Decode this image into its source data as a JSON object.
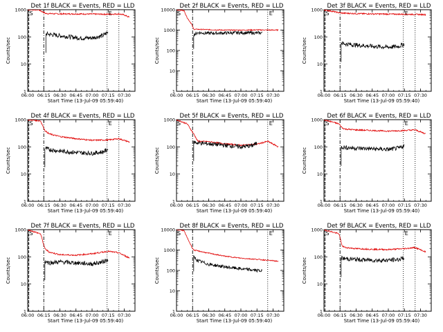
{
  "figure": {
    "colors": {
      "events": "#000000",
      "lld": "#e00000",
      "axes": "#000000",
      "background": "#ffffff"
    },
    "markers": {
      "start": "S",
      "end": "E"
    }
  },
  "chart_data": [
    {
      "type": "line",
      "title": "Det 1f BLACK = Events, RED = LLD",
      "xlabel": "Start Time (13-Jul-09 05:59:40)",
      "ylabel": "Counts/sec",
      "yscale": "log",
      "ylim": [
        1,
        1000
      ],
      "xlim": [
        "06:00",
        "07:40"
      ],
      "xticks": [
        "06:00",
        "06:15",
        "06:30",
        "06:45",
        "07:00",
        "07:15",
        "07:30"
      ],
      "yticks": [
        "1",
        "10",
        "100",
        "1000"
      ],
      "grid": false,
      "vlines": [
        "06:01",
        "06:15",
        "07:14",
        "07:25"
      ],
      "series": [
        {
          "color": "#000000",
          "x": [
            "06:17",
            "06:20",
            "06:30",
            "06:40",
            "06:50",
            "07:00",
            "07:10",
            "07:15"
          ],
          "y": [
            130,
            125,
            110,
            100,
            90,
            92,
            110,
            150
          ]
        },
        {
          "color": "#e00000",
          "x": [
            "06:00",
            "06:10",
            "06:17",
            "06:20",
            "06:30",
            "06:45",
            "07:00",
            "07:15",
            "07:25",
            "07:30",
            "07:35"
          ],
          "y": [
            1000,
            1000,
            720,
            720,
            700,
            700,
            690,
            680,
            700,
            640,
            520
          ]
        }
      ]
    },
    {
      "type": "line",
      "title": "Det 2f BLACK = Events, RED = LLD",
      "xlabel": "Start Time (13-Jul-09 05:59:40)",
      "ylabel": "Counts/sec",
      "yscale": "log",
      "ylim": [
        1,
        10000
      ],
      "xlim": [
        "06:00",
        "07:40"
      ],
      "xticks": [
        "06:00",
        "06:15",
        "06:30",
        "06:45",
        "07:00",
        "07:15",
        "07:30"
      ],
      "yticks": [
        "1",
        "10",
        "100",
        "1000",
        "10000"
      ],
      "grid": false,
      "vlines": [
        "06:15",
        "07:25"
      ],
      "series": [
        {
          "color": "#000000",
          "x": [
            "06:16",
            "06:20",
            "06:30",
            "06:45",
            "07:00",
            "07:15",
            "07:20"
          ],
          "y": [
            600,
            750,
            700,
            720,
            740,
            720,
            730
          ]
        },
        {
          "color": "#e00000",
          "x": [
            "06:00",
            "06:07",
            "06:10",
            "06:14",
            "06:16",
            "06:30",
            "06:45",
            "07:00",
            "07:15",
            "07:35"
          ],
          "y": [
            10000,
            9000,
            4000,
            2000,
            1100,
            1050,
            1000,
            1000,
            1020,
            1000
          ]
        }
      ]
    },
    {
      "type": "line",
      "title": "Det 3f BLACK = Events, RED = LLD",
      "xlabel": "Start Time (13-Jul-09 05:59:40)",
      "ylabel": "Counts/sec",
      "yscale": "log",
      "ylim": [
        1,
        1000
      ],
      "xlim": [
        "06:00",
        "07:40"
      ],
      "xticks": [
        "06:00",
        "06:15",
        "06:30",
        "06:45",
        "07:00",
        "07:15",
        "07:30"
      ],
      "yticks": [
        "1",
        "10",
        "100",
        "1000"
      ],
      "grid": false,
      "vlines": [
        "06:01",
        "06:15",
        "07:14",
        "07:25"
      ],
      "series": [
        {
          "color": "#000000",
          "x": [
            "06:16",
            "06:20",
            "06:30",
            "06:45",
            "07:00",
            "07:10",
            "07:15"
          ],
          "y": [
            60,
            55,
            50,
            45,
            42,
            45,
            55
          ]
        },
        {
          "color": "#e00000",
          "x": [
            "06:00",
            "06:16",
            "06:30",
            "06:45",
            "07:00",
            "07:15",
            "07:35"
          ],
          "y": [
            1000,
            750,
            720,
            700,
            690,
            680,
            660
          ]
        }
      ]
    },
    {
      "type": "line",
      "title": "Det 4f BLACK = Events, RED = LLD",
      "xlabel": "Start Time (13-Jul-09 05:59:40)",
      "ylabel": "Counts/sec",
      "yscale": "log",
      "ylim": [
        1,
        1000
      ],
      "xlim": [
        "06:00",
        "07:40"
      ],
      "xticks": [
        "06:00",
        "06:15",
        "06:30",
        "06:45",
        "07:00",
        "07:15",
        "07:30"
      ],
      "yticks": [
        "1",
        "10",
        "100",
        "1000"
      ],
      "grid": false,
      "vlines": [
        "06:01",
        "06:15",
        "07:14",
        "07:25"
      ],
      "series": [
        {
          "color": "#000000",
          "x": [
            "06:16",
            "06:20",
            "06:30",
            "06:45",
            "07:00",
            "07:10",
            "07:15"
          ],
          "y": [
            90,
            80,
            70,
            62,
            58,
            65,
            80
          ]
        },
        {
          "color": "#e00000",
          "x": [
            "06:00",
            "06:12",
            "06:16",
            "06:20",
            "06:30",
            "06:45",
            "07:00",
            "07:15",
            "07:25",
            "07:35"
          ],
          "y": [
            1000,
            900,
            400,
            300,
            240,
            200,
            175,
            180,
            200,
            150
          ]
        }
      ]
    },
    {
      "type": "line",
      "title": "Det 5f BLACK = Events, RED = LLD",
      "xlabel": "Start Time (13-Jul-09 05:59:40)",
      "ylabel": "Counts/sec",
      "yscale": "log",
      "ylim": [
        1,
        1000
      ],
      "xlim": [
        "06:00",
        "07:40"
      ],
      "xticks": [
        "06:00",
        "06:15",
        "06:30",
        "06:45",
        "07:00",
        "07:15",
        "07:30"
      ],
      "yticks": [
        "1",
        "10",
        "100",
        "1000"
      ],
      "grid": false,
      "vlines": [
        "06:15",
        "07:25"
      ],
      "series": [
        {
          "color": "#000000",
          "x": [
            "06:16",
            "06:20",
            "06:30",
            "06:45",
            "07:00",
            "07:10",
            "07:15"
          ],
          "y": [
            150,
            140,
            130,
            115,
            100,
            110,
            135
          ]
        },
        {
          "color": "#e00000",
          "x": [
            "06:00",
            "06:10",
            "06:16",
            "06:20",
            "06:30",
            "06:45",
            "07:00",
            "07:15",
            "07:25",
            "07:35"
          ],
          "y": [
            1000,
            700,
            300,
            160,
            155,
            130,
            115,
            125,
            160,
            100
          ]
        }
      ]
    },
    {
      "type": "line",
      "title": "Det 6f BLACK = Events, RED = LLD",
      "xlabel": "Start Time (13-Jul-09 05:59:40)",
      "ylabel": "Counts/sec",
      "yscale": "log",
      "ylim": [
        1,
        1000
      ],
      "xlim": [
        "06:00",
        "07:40"
      ],
      "xticks": [
        "06:00",
        "06:15",
        "06:30",
        "06:45",
        "07:00",
        "07:15",
        "07:30"
      ],
      "yticks": [
        "1",
        "10",
        "100",
        "1000"
      ],
      "grid": false,
      "vlines": [
        "06:01",
        "06:15",
        "07:14",
        "07:25"
      ],
      "series": [
        {
          "color": "#000000",
          "x": [
            "06:16",
            "06:20",
            "06:30",
            "06:45",
            "07:00",
            "07:10",
            "07:15"
          ],
          "y": [
            100,
            95,
            90,
            85,
            80,
            90,
            110
          ]
        },
        {
          "color": "#e00000",
          "x": [
            "06:00",
            "06:14",
            "06:17",
            "06:20",
            "06:30",
            "06:45",
            "07:00",
            "07:15",
            "07:25",
            "07:35"
          ],
          "y": [
            1000,
            700,
            500,
            450,
            420,
            400,
            380,
            400,
            420,
            300
          ]
        }
      ]
    },
    {
      "type": "line",
      "title": "Det 7f BLACK = Events, RED = LLD",
      "xlabel": "Start Time (13-Jul-09 05:59:40)",
      "ylabel": "Counts/sec",
      "yscale": "log",
      "ylim": [
        1,
        1000
      ],
      "xlim": [
        "06:00",
        "07:40"
      ],
      "xticks": [
        "06:00",
        "06:15",
        "06:30",
        "06:45",
        "07:00",
        "07:15",
        "07:30"
      ],
      "yticks": [
        "1",
        "10",
        "100",
        "1000"
      ],
      "grid": false,
      "vlines": [
        "06:01",
        "06:15",
        "07:14",
        "07:25"
      ],
      "series": [
        {
          "color": "#000000",
          "x": [
            "06:16",
            "06:20",
            "06:30",
            "06:45",
            "07:00",
            "07:10",
            "07:15"
          ],
          "y": [
            70,
            60,
            65,
            60,
            55,
            65,
            80
          ]
        },
        {
          "color": "#e00000",
          "x": [
            "06:00",
            "06:12",
            "06:16",
            "06:20",
            "06:30",
            "06:45",
            "07:00",
            "07:15",
            "07:25",
            "07:35"
          ],
          "y": [
            1000,
            700,
            200,
            150,
            120,
            115,
            130,
            160,
            140,
            90
          ]
        }
      ]
    },
    {
      "type": "line",
      "title": "Det 8f BLACK = Events, RED = LLD",
      "xlabel": "Start Time (13-Jul-09 05:59:40)",
      "ylabel": "Counts/sec",
      "yscale": "log",
      "ylim": [
        1,
        10000
      ],
      "xlim": [
        "06:00",
        "07:40"
      ],
      "xticks": [
        "06:00",
        "06:15",
        "06:30",
        "06:45",
        "07:00",
        "07:15",
        "07:30"
      ],
      "yticks": [
        "1",
        "10",
        "100",
        "1000",
        "10000"
      ],
      "grid": false,
      "vlines": [
        "06:15",
        "07:25"
      ],
      "series": [
        {
          "color": "#000000",
          "x": [
            "06:16",
            "06:20",
            "06:30",
            "06:45",
            "07:00",
            "07:15",
            "07:20"
          ],
          "y": [
            450,
            300,
            200,
            150,
            120,
            100,
            95
          ]
        },
        {
          "color": "#e00000",
          "x": [
            "06:00",
            "06:07",
            "06:10",
            "06:14",
            "06:16",
            "06:30",
            "06:45",
            "07:00",
            "07:15",
            "07:30",
            "07:35"
          ],
          "y": [
            10000,
            9000,
            4000,
            1500,
            1000,
            700,
            500,
            400,
            350,
            300,
            280
          ]
        }
      ]
    },
    {
      "type": "line",
      "title": "Det 9f BLACK = Events, RED = LLD",
      "xlabel": "Start Time (13-Jul-09 05:59:40)",
      "ylabel": "Counts/sec",
      "yscale": "log",
      "ylim": [
        1,
        1000
      ],
      "xlim": [
        "06:00",
        "07:40"
      ],
      "xticks": [
        "06:00",
        "06:15",
        "06:30",
        "06:45",
        "07:00",
        "07:15",
        "07:30"
      ],
      "yticks": [
        "1",
        "10",
        "100",
        "1000"
      ],
      "grid": false,
      "vlines": [
        "06:01",
        "06:15",
        "07:14",
        "07:25"
      ],
      "series": [
        {
          "color": "#000000",
          "x": [
            "06:16",
            "06:20",
            "06:30",
            "06:45",
            "07:00",
            "07:10",
            "07:15"
          ],
          "y": [
            90,
            85,
            80,
            75,
            75,
            80,
            95
          ]
        },
        {
          "color": "#e00000",
          "x": [
            "06:00",
            "06:14",
            "06:17",
            "06:20",
            "06:30",
            "06:45",
            "07:00",
            "07:15",
            "07:25",
            "07:35"
          ],
          "y": [
            1000,
            700,
            250,
            220,
            200,
            190,
            185,
            200,
            220,
            150
          ]
        }
      ]
    }
  ]
}
